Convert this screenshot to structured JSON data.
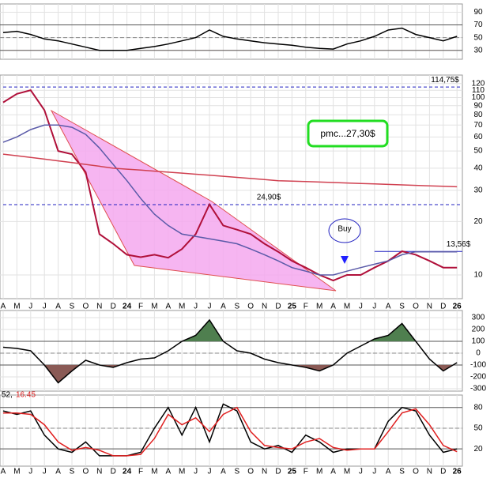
{
  "chart_data": [
    {
      "type": "line",
      "ylim": [
        16,
        103
      ],
      "yticks": [
        30,
        50,
        70,
        90
      ],
      "ref_lines": [
        30,
        50,
        70
      ],
      "fill_below": 30,
      "fill_below_color": "#8a5a55",
      "series": [
        {
          "color": "#000000",
          "values": [
            58,
            60,
            55,
            48,
            45,
            40,
            35,
            30,
            30,
            30,
            33,
            36,
            40,
            45,
            50,
            62,
            52,
            48,
            45,
            42,
            40,
            38,
            35,
            33,
            32,
            40,
            45,
            52,
            62,
            65,
            55,
            50,
            45,
            52
          ]
        }
      ]
    },
    {
      "type": "line",
      "log": true,
      "ylim": [
        7.35,
        134
      ],
      "yticks": [
        10,
        20,
        30,
        40,
        50,
        60,
        70,
        80,
        90,
        100,
        110,
        120
      ],
      "categories": [
        "A",
        "M",
        "J",
        "J",
        "A",
        "S",
        "O",
        "N",
        "D",
        "24",
        "F",
        "M",
        "A",
        "M",
        "J",
        "J",
        "A",
        "S",
        "O",
        "N",
        "D",
        "25",
        "F",
        "M",
        "A",
        "M",
        "J",
        "J",
        "A",
        "S",
        "O",
        "N",
        "D",
        "26"
      ],
      "series": [
        {
          "color": "#b0103a",
          "values": [
            94,
            105,
            110,
            85,
            50,
            48,
            38,
            17,
            15,
            13,
            12.6,
            13,
            12.5,
            14,
            17,
            25,
            19,
            18,
            17,
            15,
            13.5,
            12,
            11,
            10,
            9.3,
            10,
            10,
            11,
            12,
            13.6,
            13,
            12,
            11,
            11
          ]
        },
        {
          "color": "#5a5aa8",
          "values": [
            56,
            60,
            66,
            70,
            70,
            68,
            62,
            52,
            42,
            34,
            27,
            22,
            19,
            17,
            16.5,
            16,
            15.5,
            15,
            14,
            13,
            12,
            11,
            10.5,
            10,
            10,
            10.5,
            11,
            11.5,
            12,
            13,
            13.5,
            13.5,
            13.5,
            13.5
          ]
        },
        {
          "color": "#d04050",
          "values": [
            48,
            47,
            46,
            45,
            44,
            43,
            42,
            41,
            40,
            39.5,
            39,
            38.5,
            38,
            37.5,
            37,
            36.5,
            36,
            35.5,
            35,
            34.5,
            34,
            33.8,
            33.6,
            33.4,
            33.2,
            33,
            32.8,
            32.6,
            32.4,
            32.2,
            32,
            31.8,
            31.6,
            31.4
          ]
        }
      ],
      "levels": [
        {
          "value": 114.75,
          "label": "114,75$",
          "dashed": true,
          "from": 0
        },
        {
          "value": 24.9,
          "label": "24,90$",
          "dashed": true,
          "from": 0
        },
        {
          "value": 13.56,
          "label": "13,56$",
          "dashed": false,
          "from": 27
        }
      ],
      "note": "pmc...27,30$",
      "buy": "Buy"
    },
    {
      "type": "line",
      "ylim": [
        -320,
        360
      ],
      "yticks": [
        300,
        200,
        100,
        0,
        -100,
        -200,
        -300
      ],
      "ref_lines": [
        100,
        0,
        -100
      ],
      "fill_above": 100,
      "fill_above_color": "#4f7f4f",
      "fill_below": -100,
      "fill_below_color": "#8a5a55",
      "series": [
        {
          "color": "#000000",
          "values": [
            50,
            40,
            20,
            -100,
            -250,
            -150,
            -60,
            -100,
            -120,
            -80,
            -50,
            -40,
            20,
            100,
            150,
            280,
            100,
            20,
            0,
            -50,
            -80,
            -100,
            -120,
            -150,
            -100,
            0,
            60,
            120,
            150,
            250,
            100,
            -50,
            -150,
            -80
          ]
        }
      ]
    },
    {
      "type": "line",
      "ylim": [
        -5,
        98
      ],
      "yticks": [
        20,
        50,
        80
      ],
      "ref_lines": [
        20,
        50,
        80
      ],
      "label_period": "52,",
      "label_value": "16.45",
      "series": [
        {
          "color": "#000000",
          "values": [
            75,
            70,
            75,
            40,
            20,
            15,
            30,
            10,
            10,
            10,
            15,
            50,
            80,
            40,
            80,
            30,
            85,
            75,
            30,
            20,
            25,
            15,
            40,
            30,
            15,
            20,
            20,
            20,
            60,
            80,
            75,
            40,
            15,
            20
          ]
        },
        {
          "color": "#e02020",
          "values": [
            72,
            72,
            70,
            55,
            30,
            18,
            22,
            18,
            10,
            10,
            12,
            35,
            70,
            55,
            65,
            45,
            70,
            80,
            45,
            25,
            22,
            20,
            30,
            35,
            22,
            18,
            20,
            20,
            45,
            72,
            78,
            55,
            25,
            16
          ]
        }
      ]
    }
  ]
}
